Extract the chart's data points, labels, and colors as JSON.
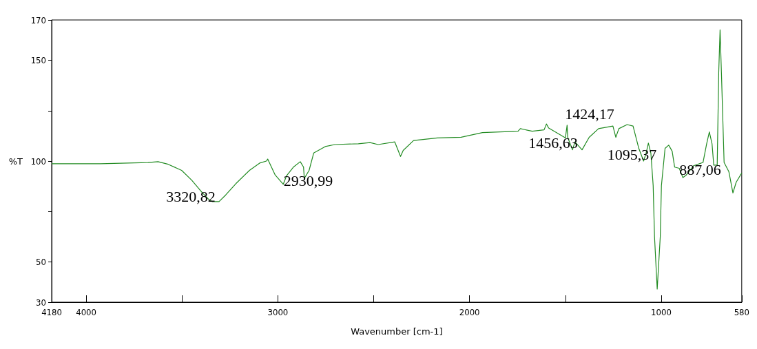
{
  "chart_data": {
    "type": "line",
    "xlabel": "Wavenumber [cm-1]",
    "ylabel": "%T",
    "xlim": [
      4180,
      580
    ],
    "ylim": [
      30,
      170
    ],
    "xticks": [
      4180,
      4000,
      {
        "value": 3500,
        "label": null
      },
      3000,
      {
        "value": 2500,
        "label": null
      },
      2000,
      {
        "value": 1500,
        "label": null
      },
      1000,
      580
    ],
    "yticks": [
      30,
      50,
      {
        "value": 75,
        "label": null
      },
      100,
      {
        "value": 125,
        "label": null
      },
      150,
      170
    ],
    "x": [
      4180,
      3926,
      3678,
      3625,
      3572,
      3502,
      3449,
      3396,
      3360,
      3343,
      3307,
      3272,
      3219,
      3148,
      3095,
      3060,
      3053,
      3014,
      2972,
      2954,
      2919,
      2883,
      2866,
      2862,
      2837,
      2813,
      2753,
      2703,
      2580,
      2519,
      2477,
      2390,
      2360,
      2346,
      2292,
      2168,
      2044,
      1933,
      1747,
      1735,
      1673,
      1611,
      1599,
      1587,
      1500,
      1491,
      1488,
      1463,
      1450,
      1413,
      1376,
      1327,
      1252,
      1237,
      1221,
      1178,
      1147,
      1117,
      1092,
      1079,
      1067,
      1054,
      1042,
      1035,
      1021,
      1005,
      999,
      980,
      961,
      943,
      930,
      906,
      887,
      869,
      831,
      782,
      763,
      749,
      735,
      726,
      708,
      700,
      693,
      686,
      672,
      647,
      626,
      609,
      580
    ],
    "series": [
      {
        "color": "#228b22",
        "values": [
          98.7,
          98.7,
          99.3,
          99.7,
          98.4,
          95.4,
          90.5,
          84.5,
          80.9,
          79.9,
          79.9,
          83.2,
          88.8,
          95.4,
          99,
          100,
          101,
          93.1,
          88.5,
          92.8,
          97,
          99.7,
          97,
          91.4,
          95.4,
          104,
          107.2,
          108.2,
          108.6,
          109.2,
          108.2,
          109.5,
          102.3,
          105.3,
          110.2,
          111.5,
          111.8,
          114.1,
          114.8,
          116.1,
          114.8,
          115.5,
          118.4,
          116.4,
          111.5,
          117.8,
          111.8,
          105.6,
          109.5,
          105.6,
          111.8,
          116.1,
          117.4,
          111.8,
          116.1,
          118.1,
          117.4,
          106.3,
          100,
          103.9,
          108.9,
          103.9,
          87.8,
          62.5,
          36.5,
          62.5,
          87.8,
          106.3,
          107.9,
          104.9,
          97,
          96.4,
          91.8,
          93.1,
          97.7,
          99.3,
          108.6,
          114.5,
          108.6,
          98,
          98,
          144.1,
          165.1,
          144,
          99.3,
          94.7,
          84.2,
          89.5,
          94.1
        ]
      }
    ],
    "annotations": [
      {
        "text": "3320,82",
        "x": 3320.82,
        "y": 79.9
      },
      {
        "text": "2930,99",
        "x": 2930.99,
        "y": 95.6
      },
      {
        "text": "1456,63",
        "x": 1456.63,
        "y": 107.5
      },
      {
        "text": "1424,17",
        "x": 1424.17,
        "y": 106.8
      },
      {
        "text": "1095,37",
        "x": 1095.37,
        "y": 100.9
      },
      {
        "text": "887,06",
        "x": 887.06,
        "y": 91.8
      }
    ]
  }
}
